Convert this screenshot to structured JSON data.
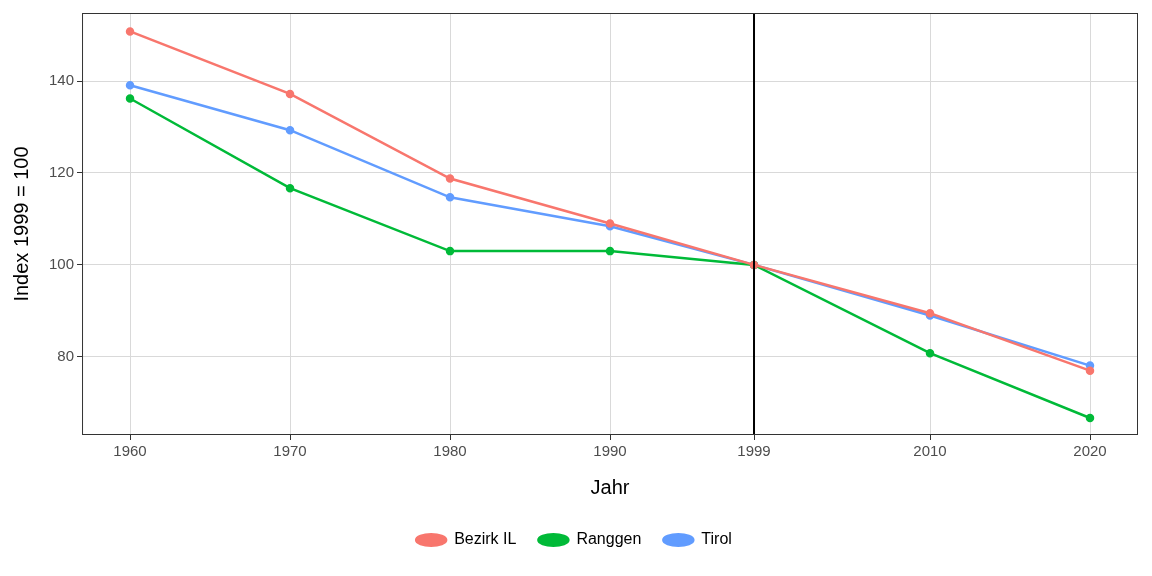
{
  "chart_data": {
    "type": "line",
    "x_label": "Jahr",
    "y_label": "Index 1999 = 100",
    "x": [
      1960,
      1970,
      1980,
      1990,
      1999,
      2010,
      2020
    ],
    "series": [
      {
        "name": "Bezirk IL",
        "color": "#F8766D",
        "marker": "circle",
        "values": [
          150.8,
          137.2,
          118.8,
          109,
          100,
          89.5,
          77
        ]
      },
      {
        "name": "Ranggen",
        "color": "#00BA38",
        "marker": "circle",
        "values": [
          136.2,
          116.7,
          103,
          103,
          100,
          80.8,
          66.7
        ]
      },
      {
        "name": "Tirol",
        "color": "#619CFF",
        "marker": "circle",
        "values": [
          139.1,
          129.3,
          114.7,
          108.4,
          100,
          89,
          78.1
        ]
      }
    ],
    "xlim": [
      1957,
      2023
    ],
    "xticks": [
      1960,
      1970,
      1980,
      1990,
      1999,
      2010,
      2020
    ],
    "ylim": [
      63,
      154.8
    ],
    "yticks": [
      80,
      100,
      120,
      140
    ],
    "vline": 1999,
    "grid": true,
    "legend": "bottom"
  }
}
